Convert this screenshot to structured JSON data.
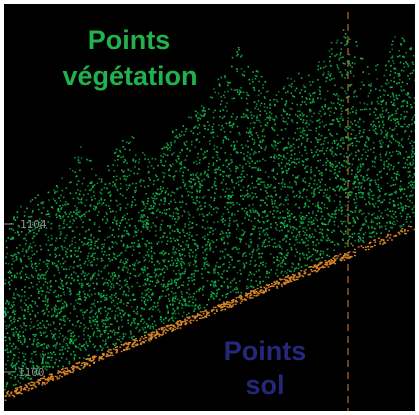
{
  "labels": {
    "vegetation_line1": "Points",
    "vegetation_line2": "végétation",
    "ground_line1": "Points",
    "ground_line2": "sol"
  },
  "axis_ticks": {
    "upper": "1104",
    "lower": "1100"
  },
  "colors": {
    "background": "#000000",
    "vegetation_points": "#1fbf5a",
    "ground_points": "#d8872a",
    "vegetation_label": "#22b24c",
    "ground_label": "#25287a",
    "marker_line": "#b46b22",
    "tick_text": "#8f8f8f"
  }
}
